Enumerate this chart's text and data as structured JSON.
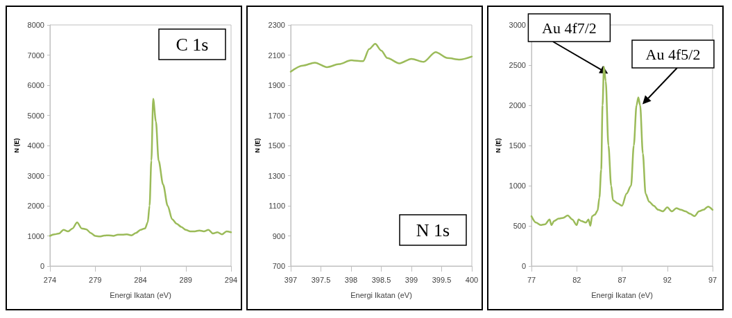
{
  "chart_data": [
    {
      "type": "line",
      "xlabel": "Energi Ikatan (eV)",
      "ylabel": "N (E)",
      "annotations": [
        "C 1s"
      ],
      "color": "#9bbb59",
      "marker": "none",
      "line_style": "solid",
      "grid": false,
      "x": [
        274,
        274.5,
        275,
        275.5,
        276,
        276.5,
        277,
        277.5,
        278,
        278.5,
        279,
        279.5,
        280,
        280.5,
        281,
        281.5,
        282,
        282.5,
        283,
        283.5,
        284,
        284.5,
        284.8,
        285,
        285.2,
        285.4,
        285.7,
        286,
        286.5,
        287,
        287.5,
        288,
        288.5,
        289,
        289.5,
        290,
        290.5,
        291,
        291.5,
        292,
        292.5,
        293,
        293.5,
        294
      ],
      "values": [
        1000,
        1050,
        1080,
        1200,
        1150,
        1250,
        1450,
        1250,
        1220,
        1100,
        1000,
        980,
        1010,
        1020,
        1000,
        1040,
        1040,
        1050,
        1020,
        1100,
        1200,
        1250,
        1450,
        2000,
        3500,
        5550,
        4800,
        3500,
        2700,
        2000,
        1550,
        1400,
        1300,
        1200,
        1150,
        1150,
        1180,
        1150,
        1200,
        1080,
        1120,
        1050,
        1150,
        1120
      ],
      "xlim": [
        274,
        294
      ],
      "xticks": [
        274,
        279,
        284,
        289,
        294
      ],
      "ylim": [
        0,
        8000
      ],
      "yticks": [
        0,
        1000,
        2000,
        3000,
        4000,
        5000,
        6000,
        7000,
        8000
      ]
    },
    {
      "type": "line",
      "xlabel": "Energi Ikatan (eV)",
      "ylabel": "N (E)",
      "annotations": [
        "N 1s"
      ],
      "color": "#9bbb59",
      "marker": "none",
      "line_style": "solid",
      "grid": false,
      "x": [
        397,
        397.2,
        397.4,
        397.6,
        397.8,
        398,
        398.2,
        398.3,
        398.4,
        398.5,
        398.6,
        398.8,
        399,
        399.2,
        399.4,
        399.6,
        399.8,
        400
      ],
      "values": [
        1990,
        2030,
        2050,
        2020,
        2040,
        2065,
        2060,
        2140,
        2175,
        2130,
        2080,
        2045,
        2075,
        2055,
        2120,
        2080,
        2070,
        2090
      ],
      "xlim": [
        397,
        400
      ],
      "xticks": [
        397,
        397.5,
        398,
        398.5,
        399,
        399.5,
        400
      ],
      "ylim": [
        700,
        2300
      ],
      "yticks": [
        700,
        900,
        1100,
        1300,
        1500,
        1700,
        1900,
        2100,
        2300
      ]
    },
    {
      "type": "line",
      "xlabel": "Energi Ikatan (eV)",
      "ylabel": "N (E)",
      "annotations": [
        {
          "text": "Au 4f7/2",
          "x": 85,
          "y": 2480
        },
        {
          "text": "Au 4f5/2",
          "x": 88.8,
          "y": 2100
        }
      ],
      "color": "#9bbb59",
      "marker": "none",
      "line_style": "solid",
      "grid": false,
      "x": [
        77,
        77.5,
        78,
        78.5,
        79,
        79.2,
        79.5,
        80,
        80.5,
        81,
        81.5,
        82,
        82.2,
        82.5,
        83,
        83.3,
        83.5,
        83.7,
        84,
        84.3,
        84.5,
        84.7,
        84.85,
        85,
        85.2,
        85.5,
        85.8,
        86,
        86.5,
        87,
        87.5,
        88,
        88.3,
        88.6,
        88.8,
        89,
        89.3,
        89.6,
        90,
        90.5,
        91,
        91.5,
        92,
        92.5,
        93,
        93.5,
        94,
        94.5,
        95,
        95.5,
        96,
        96.5,
        97
      ],
      "values": [
        620,
        540,
        510,
        520,
        580,
        510,
        560,
        590,
        600,
        630,
        580,
        510,
        580,
        560,
        540,
        580,
        500,
        620,
        640,
        690,
        850,
        1200,
        2000,
        2480,
        2300,
        1500,
        1000,
        820,
        780,
        750,
        900,
        1000,
        1500,
        2000,
        2100,
        2000,
        1400,
        900,
        800,
        750,
        700,
        680,
        730,
        680,
        720,
        700,
        680,
        650,
        620,
        680,
        700,
        740,
        700
      ],
      "xlim": [
        77,
        97
      ],
      "xticks": [
        77,
        82,
        87,
        92,
        97
      ],
      "ylim": [
        0,
        3000
      ],
      "yticks": [
        0,
        500,
        1000,
        1500,
        2000,
        2500,
        3000
      ]
    }
  ]
}
